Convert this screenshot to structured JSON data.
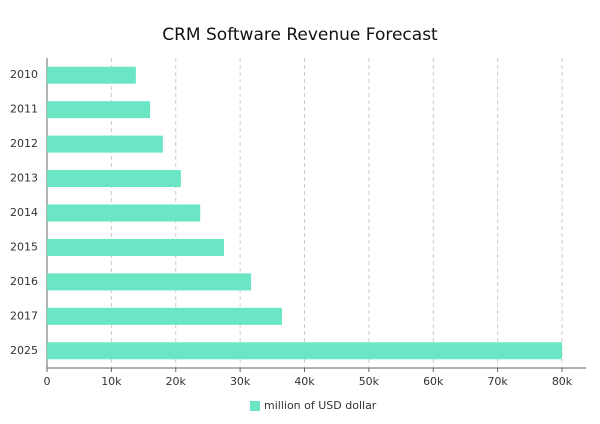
{
  "chart_data": {
    "type": "hbar",
    "title": "CRM Software Revenue Forecast",
    "categories": [
      "2010",
      "2011",
      "2012",
      "2013",
      "2014",
      "2015",
      "2016",
      "2017",
      "2025"
    ],
    "series": [
      {
        "name": "million of USD dollar",
        "color": "#6ae6c4",
        "values": [
          13800,
          16000,
          18000,
          20800,
          23800,
          27500,
          31700,
          36500,
          80000
        ]
      }
    ],
    "xlim": [
      0,
      80000
    ],
    "xticks": [
      0,
      {
        "value": 10000,
        "label": "10k"
      },
      {
        "value": 20000,
        "label": "20k"
      },
      {
        "value": 30000,
        "label": "30k"
      },
      {
        "value": 40000,
        "label": "40k"
      },
      {
        "value": 50000,
        "label": "50k"
      },
      {
        "value": 60000,
        "label": "60k"
      },
      {
        "value": 70000,
        "label": "70k"
      },
      {
        "value": 80000,
        "label": "80k"
      }
    ],
    "grid": true,
    "legend": "bottom"
  }
}
